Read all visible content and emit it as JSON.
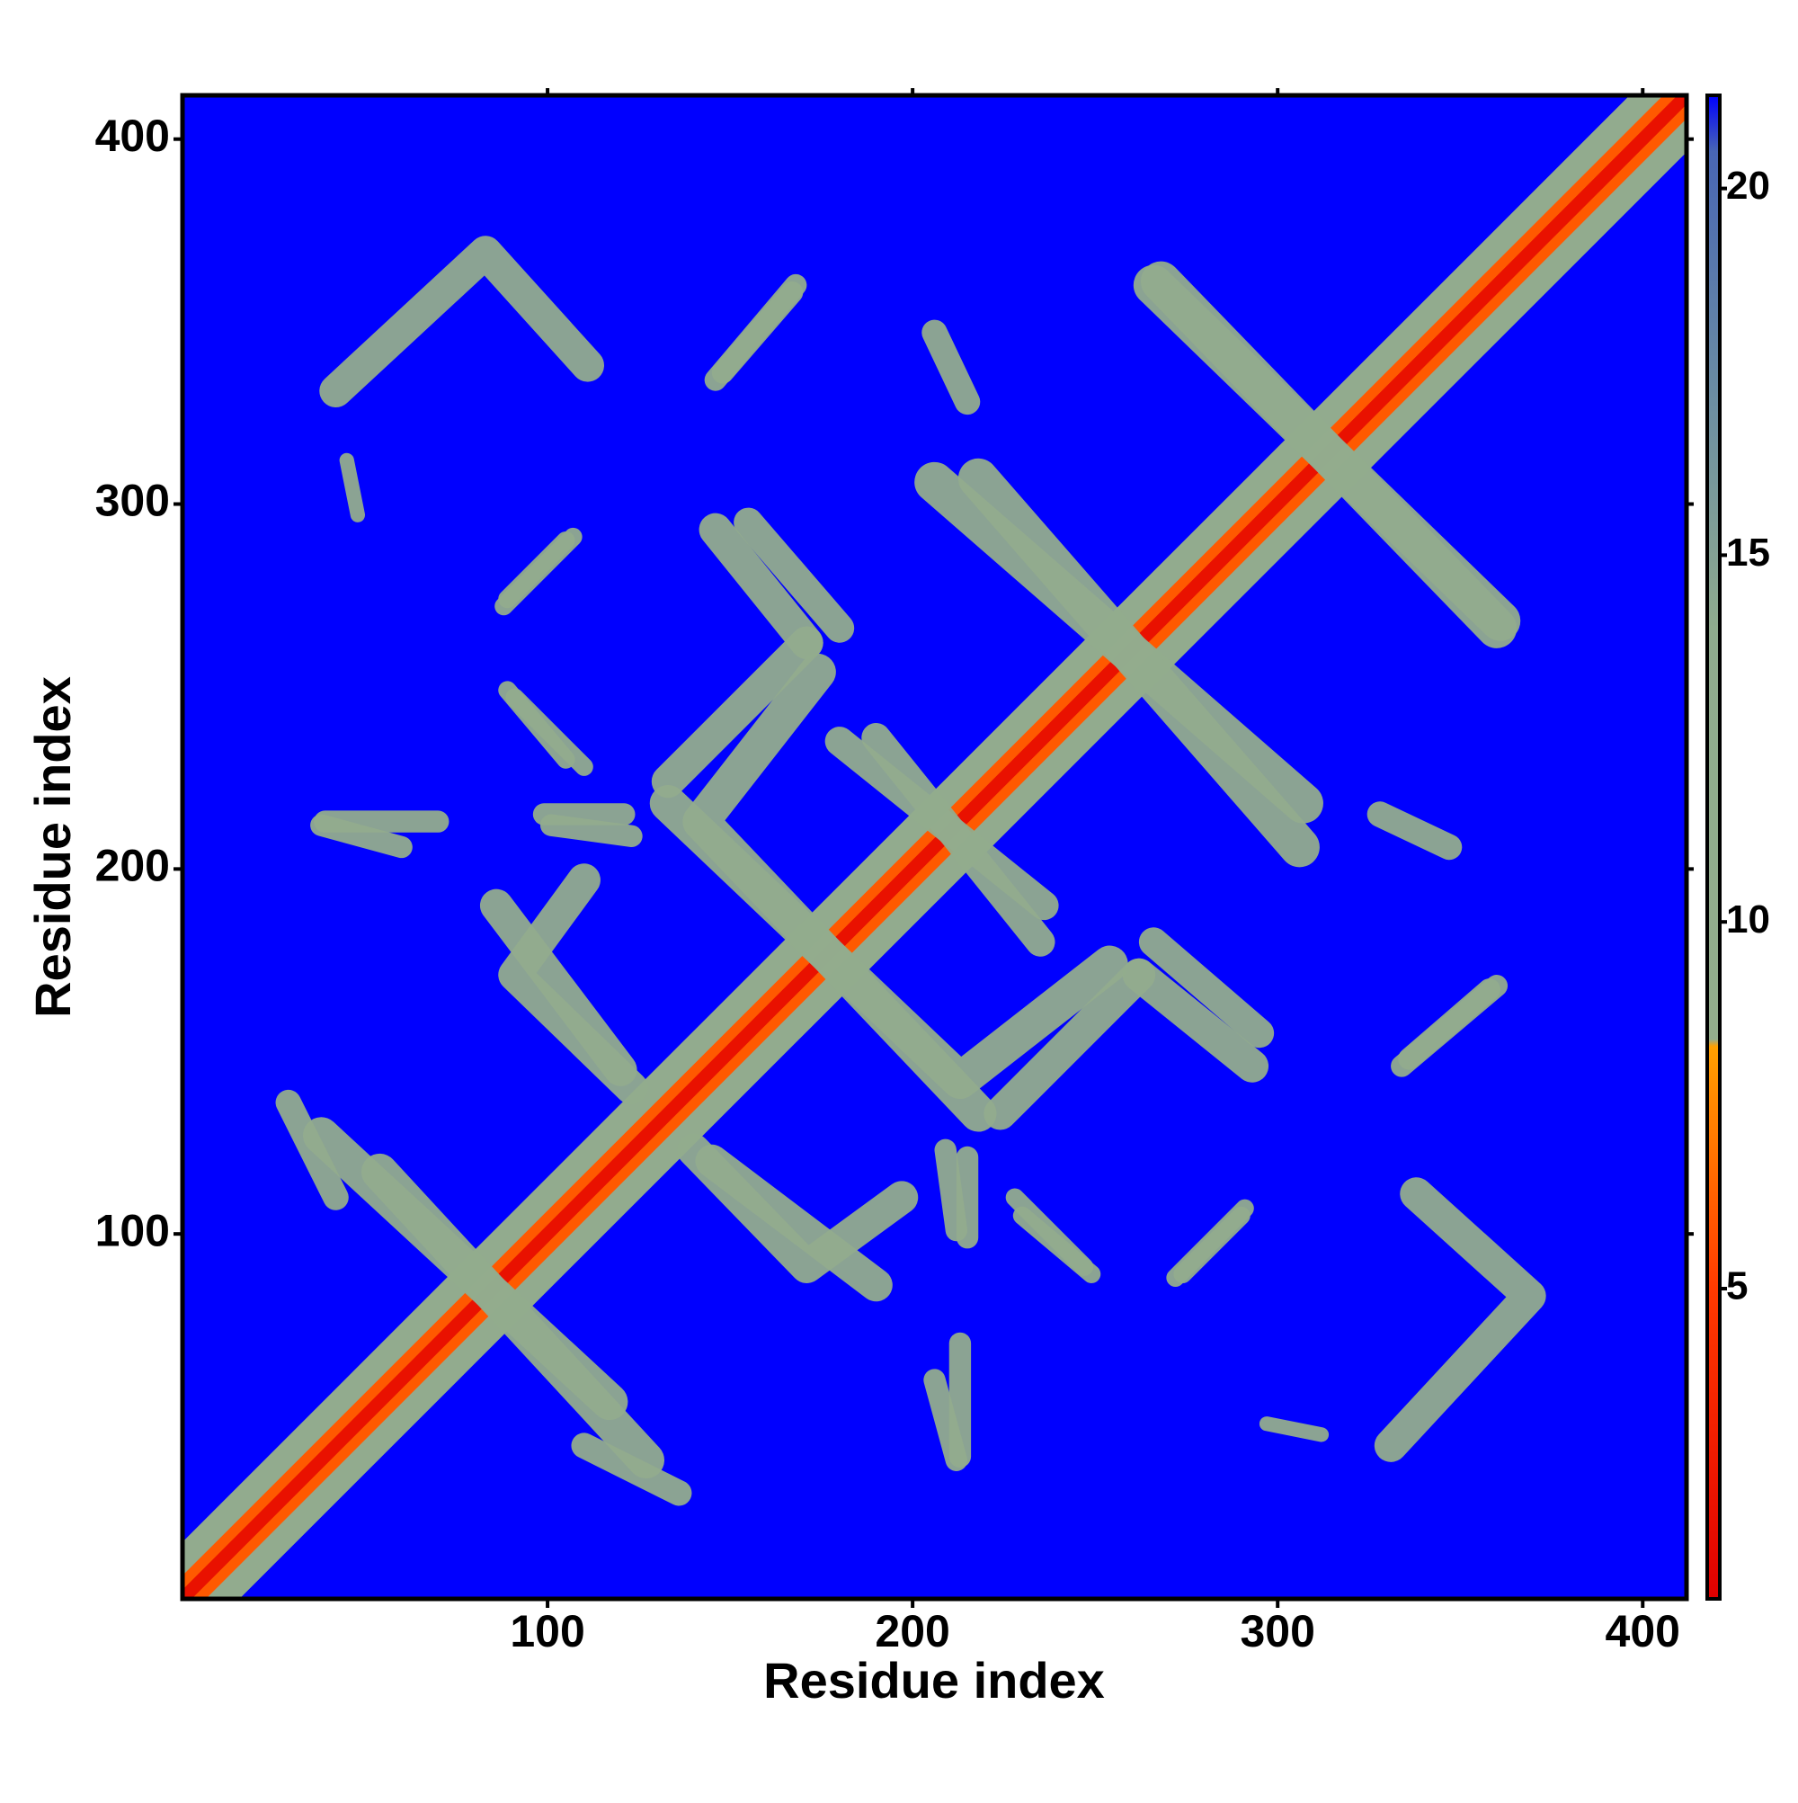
{
  "chart_data": {
    "type": "heatmap",
    "x_label": "Residue index",
    "y_label": "Residue index",
    "xlim": [
      0,
      412
    ],
    "ylim": [
      0,
      412
    ],
    "xticks": [
      100,
      200,
      300,
      400
    ],
    "yticks": [
      100,
      200,
      300,
      400
    ],
    "symmetric": true,
    "clim": [
      0.77,
      21.27
    ],
    "cticks": [
      5,
      10,
      15,
      20
    ],
    "colormap": [
      {
        "value": 0.77,
        "color": "#e00000"
      },
      {
        "value": 5,
        "color": "#ff3a00"
      },
      {
        "value": 8.3,
        "color": "#ffa000"
      },
      {
        "value": 8.4,
        "color": "#93ad8c"
      },
      {
        "value": 14,
        "color": "#8fab8e"
      },
      {
        "value": 17,
        "color": "#6d8fa2"
      },
      {
        "value": 20.5,
        "color": "#4866b4"
      },
      {
        "value": 21.27,
        "color": "#0000ff"
      }
    ],
    "bands": [
      {
        "points": [
          [
            0,
            0
          ],
          [
            412,
            412
          ]
        ],
        "value": 10,
        "width": 22
      },
      {
        "points": [
          [
            0,
            0
          ],
          [
            412,
            412
          ]
        ],
        "value": 6,
        "width": 9
      },
      {
        "points": [
          [
            0,
            0
          ],
          [
            412,
            412
          ]
        ],
        "value": 2,
        "width": 3.5
      },
      {
        "points": [
          [
            42,
            331
          ],
          [
            83,
            369
          ],
          [
            111,
            338
          ]
        ],
        "value": 10,
        "width": 9
      },
      {
        "points": [
          [
            54,
            117
          ],
          [
            127,
            38
          ]
        ],
        "value": 10,
        "width": 10
      },
      {
        "points": [
          [
            86,
            190
          ],
          [
            120,
            145
          ]
        ],
        "value": 10,
        "width": 9
      },
      {
        "points": [
          [
            133,
            224
          ],
          [
            171,
            262
          ]
        ],
        "value": 10,
        "width": 9
      },
      {
        "points": [
          [
            140,
            123
          ],
          [
            171,
            91
          ],
          [
            197,
            110
          ]
        ],
        "value": 10,
        "width": 9
      },
      {
        "points": [
          [
            133,
            218
          ],
          [
            213,
            142
          ],
          [
            254,
            174
          ]
        ],
        "value": 10,
        "width": 10
      },
      {
        "points": [
          [
            146,
            293
          ],
          [
            171,
            262
          ]
        ],
        "value": 10,
        "width": 9
      },
      {
        "points": [
          [
            206,
            306
          ],
          [
            307,
            218
          ]
        ],
        "value": 10,
        "width": 11
      },
      {
        "points": [
          [
            190,
            236
          ],
          [
            235,
            180
          ]
        ],
        "value": 10,
        "width": 8
      },
      {
        "points": [
          [
            266,
            180
          ],
          [
            295,
            155
          ]
        ],
        "value": 10,
        "width": 8
      },
      {
        "points": [
          [
            266,
            360
          ],
          [
            361,
            268
          ]
        ],
        "value": 10,
        "width": 11
      },
      {
        "points": [
          [
            39,
            213
          ],
          [
            70,
            213
          ]
        ],
        "value": 10,
        "width": 6
      },
      {
        "points": [
          [
            99,
            215
          ],
          [
            121,
            215
          ]
        ],
        "value": 10,
        "width": 6
      },
      {
        "points": [
          [
            206,
            347
          ],
          [
            215,
            328
          ]
        ],
        "value": 10,
        "width": 7
      },
      {
        "points": [
          [
            146,
            334
          ],
          [
            168,
            360
          ]
        ],
        "value": 10,
        "width": 6
      },
      {
        "points": [
          [
            45,
            312
          ],
          [
            48,
            297
          ]
        ],
        "value": 10,
        "width": 4
      },
      {
        "points": [
          [
            89,
            249
          ],
          [
            105,
            230
          ]
        ],
        "value": 10,
        "width": 5
      },
      {
        "points": [
          [
            89,
            274
          ],
          [
            105,
            290
          ]
        ],
        "value": 10,
        "width": 5
      },
      {
        "points": [
          [
            29,
            136
          ],
          [
            42,
            110
          ]
        ],
        "value": 10,
        "width": 7
      },
      {
        "points": [
          [
            228,
            110
          ],
          [
            247,
            91
          ]
        ],
        "value": 10,
        "width": 5
      },
      {
        "points": [
          [
            272,
            88
          ],
          [
            291,
            107
          ]
        ],
        "value": 10,
        "width": 5
      },
      {
        "points": [
          [
            209,
            123
          ],
          [
            212,
            101
          ]
        ],
        "value": 10,
        "width": 6
      },
      {
        "points": [
          [
            206,
            60
          ],
          [
            212,
            38
          ]
        ],
        "value": 10,
        "width": 6
      },
      {
        "points": [
          [
            336,
            148
          ],
          [
            358,
            167
          ]
        ],
        "value": 10,
        "width": 6
      }
    ]
  }
}
